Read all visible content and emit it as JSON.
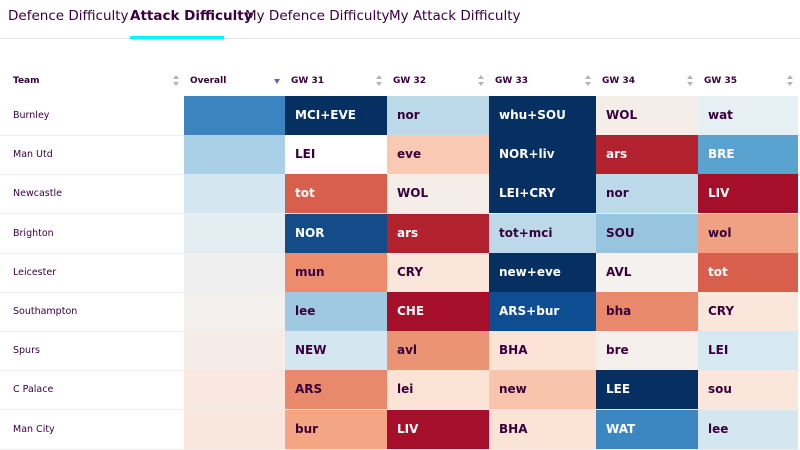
{
  "tabs": [
    {
      "label": "Defence Difficulty",
      "active": false
    },
    {
      "label": "Attack Difficulty",
      "active": true
    },
    {
      "label": "My Defence Difficulty",
      "active": false
    },
    {
      "label": "My Attack Difficulty",
      "active": false
    }
  ],
  "table": {
    "headers": {
      "team": "Team",
      "overall": "Overall",
      "gw": [
        "GW 31",
        "GW 32",
        "GW 33",
        "GW 34",
        "GW 35"
      ]
    },
    "rows": [
      {
        "team": "Burnley",
        "overall": "#3b84c0",
        "cells": [
          {
            "text": "MCI+EVE",
            "bg": "#053061",
            "fg": "dark"
          },
          {
            "text": "nor",
            "bg": "#bcd9ea",
            "fg": "light"
          },
          {
            "text": "whu+SOU",
            "bg": "#053061",
            "fg": "dark"
          },
          {
            "text": "WOL",
            "bg": "#f5ede8",
            "fg": "light"
          },
          {
            "text": "wat",
            "bg": "#e6eff4",
            "fg": "light"
          }
        ]
      },
      {
        "team": "Man Utd",
        "overall": "#a9d0e6",
        "cells": [
          {
            "text": "LEI",
            "bg": "#ffffff",
            "fg": "light"
          },
          {
            "text": "eve",
            "bg": "#f9c9b3",
            "fg": "light"
          },
          {
            "text": "NOR+liv",
            "bg": "#053061",
            "fg": "dark"
          },
          {
            "text": "ars",
            "bg": "#b2222e",
            "fg": "dark"
          },
          {
            "text": "BRE",
            "bg": "#5aa2cf",
            "fg": "dark"
          }
        ]
      },
      {
        "team": "Newcastle",
        "overall": "#d4e6ef",
        "cells": [
          {
            "text": "tot",
            "bg": "#d85f4c",
            "fg": "dark"
          },
          {
            "text": "WOL",
            "bg": "#f5ede8",
            "fg": "light"
          },
          {
            "text": "LEI+CRY",
            "bg": "#053061",
            "fg": "dark"
          },
          {
            "text": "nor",
            "bg": "#bcd9ea",
            "fg": "light"
          },
          {
            "text": "LIV",
            "bg": "#a50f2a",
            "fg": "dark"
          }
        ]
      },
      {
        "team": "Brighton",
        "overall": "#e3ecf0",
        "cells": [
          {
            "text": "NOR",
            "bg": "#144c8a",
            "fg": "dark"
          },
          {
            "text": "ars",
            "bg": "#b2222e",
            "fg": "dark"
          },
          {
            "text": "tot+mci",
            "bg": "#bcd9ea",
            "fg": "light"
          },
          {
            "text": "SOU",
            "bg": "#97c4df",
            "fg": "light"
          },
          {
            "text": "wol",
            "bg": "#f0a083",
            "fg": "light"
          }
        ]
      },
      {
        "team": "Leicester",
        "overall": "#efefef",
        "cells": [
          {
            "text": "mun",
            "bg": "#ec8c6d",
            "fg": "light"
          },
          {
            "text": "CRY",
            "bg": "#fbe6dc",
            "fg": "light"
          },
          {
            "text": "new+eve",
            "bg": "#053061",
            "fg": "dark"
          },
          {
            "text": "AVL",
            "bg": "#f5f1ee",
            "fg": "light"
          },
          {
            "text": "tot",
            "bg": "#d85f4c",
            "fg": "dark"
          }
        ]
      },
      {
        "team": "Southampton",
        "overall": "#f3efed",
        "cells": [
          {
            "text": "lee",
            "bg": "#9fc8e1",
            "fg": "light"
          },
          {
            "text": "CHE",
            "bg": "#a50f2a",
            "fg": "dark"
          },
          {
            "text": "ARS+bur",
            "bg": "#0f4d93",
            "fg": "dark"
          },
          {
            "text": "bha",
            "bg": "#e8896c",
            "fg": "light"
          },
          {
            "text": "CRY",
            "bg": "#fbe6dc",
            "fg": "light"
          }
        ]
      },
      {
        "team": "Spurs",
        "overall": "#f5ece8",
        "cells": [
          {
            "text": "NEW",
            "bg": "#d4e6ef",
            "fg": "light"
          },
          {
            "text": "avl",
            "bg": "#eb9474",
            "fg": "light"
          },
          {
            "text": "BHA",
            "bg": "#fbe3d6",
            "fg": "light"
          },
          {
            "text": "bre",
            "bg": "#f5efec",
            "fg": "light"
          },
          {
            "text": "LEI",
            "bg": "#d6e8f1",
            "fg": "light"
          }
        ]
      },
      {
        "team": "C Palace",
        "overall": "#f8e8e0",
        "cells": [
          {
            "text": "ARS",
            "bg": "#e8896c",
            "fg": "light"
          },
          {
            "text": "lei",
            "bg": "#fbe3d6",
            "fg": "light"
          },
          {
            "text": "new",
            "bg": "#f8c4ab",
            "fg": "light"
          },
          {
            "text": "LEE",
            "bg": "#053061",
            "fg": "dark"
          },
          {
            "text": "sou",
            "bg": "#fbe6dc",
            "fg": "light"
          }
        ]
      },
      {
        "team": "Man City",
        "overall": "#f9e6dd",
        "cells": [
          {
            "text": "bur",
            "bg": "#f4a584",
            "fg": "light"
          },
          {
            "text": "LIV",
            "bg": "#a50f2a",
            "fg": "dark"
          },
          {
            "text": "BHA",
            "bg": "#fbe3d6",
            "fg": "light"
          },
          {
            "text": "WAT",
            "bg": "#3c87c2",
            "fg": "dark"
          },
          {
            "text": "lee",
            "bg": "#d4e6ef",
            "fg": "light"
          }
        ]
      }
    ]
  }
}
